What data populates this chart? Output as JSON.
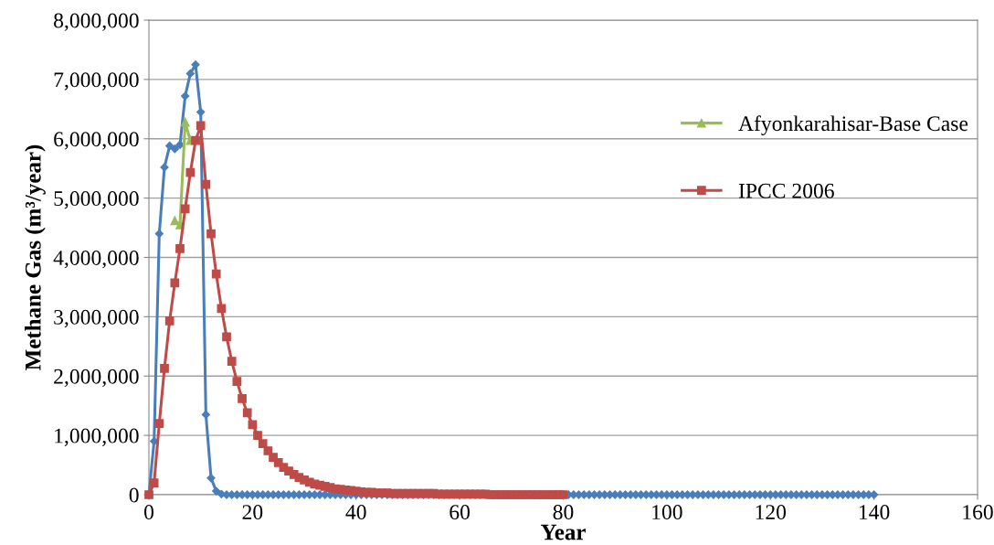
{
  "chart_data": {
    "type": "line",
    "xlabel": "Year",
    "ylabel": "Methane Gas (m³/year)",
    "xlim": [
      0,
      160
    ],
    "xticks": [
      0,
      20,
      40,
      60,
      80,
      100,
      120,
      140,
      160
    ],
    "ylim": [
      0,
      8000000
    ],
    "yticks": [
      {
        "value": 0,
        "label": "0"
      },
      {
        "value": 1000000,
        "label": "1,000,000"
      },
      {
        "value": 2000000,
        "label": "2,000,000"
      },
      {
        "value": 3000000,
        "label": "3,000,000"
      },
      {
        "value": 4000000,
        "label": "4,000,000"
      },
      {
        "value": 5000000,
        "label": "5,000,000"
      },
      {
        "value": 6000000,
        "label": "6,000,000"
      },
      {
        "value": 7000000,
        "label": "7,000,000"
      },
      {
        "value": 8000000,
        "label": "8,000,000"
      }
    ],
    "grid": "y",
    "legend": "right",
    "series": [
      {
        "color": "#4a7ebb",
        "marker": "diamond",
        "x": [
          0,
          1,
          2,
          3,
          4,
          5,
          6,
          7,
          8,
          9,
          10,
          11,
          12,
          13,
          14,
          15,
          16,
          17,
          18,
          19,
          20,
          21,
          22,
          23,
          24,
          25,
          26,
          27,
          28,
          29,
          30,
          31,
          32,
          33,
          34,
          35,
          36,
          37,
          38,
          39,
          40,
          41,
          42,
          43,
          44,
          45,
          46,
          47,
          48,
          49,
          50,
          51,
          52,
          53,
          54,
          55,
          56,
          57,
          58,
          59,
          60,
          61,
          62,
          63,
          64,
          65,
          66,
          67,
          68,
          69,
          70,
          71,
          72,
          73,
          74,
          75,
          76,
          77,
          78,
          79,
          80,
          81,
          82,
          83,
          84,
          85,
          86,
          87,
          88,
          89,
          90,
          91,
          92,
          93,
          94,
          95,
          96,
          97,
          98,
          99,
          100,
          101,
          102,
          103,
          104,
          105,
          106,
          107,
          108,
          109,
          110,
          111,
          112,
          113,
          114,
          115,
          116,
          117,
          118,
          119,
          120,
          121,
          122,
          123,
          124,
          125,
          126,
          127,
          128,
          129,
          130,
          131,
          132,
          133,
          134,
          135,
          136,
          137,
          138,
          139,
          140
        ],
        "values": [
          0,
          900000,
          4400000,
          5520000,
          5880000,
          5830000,
          5900000,
          6720000,
          7100000,
          7250000,
          6450000,
          1350000,
          280000,
          60000,
          10000,
          0,
          0,
          0,
          0,
          0,
          0,
          0,
          0,
          0,
          0,
          0,
          0,
          0,
          0,
          0,
          0,
          0,
          0,
          0,
          0,
          0,
          0,
          0,
          0,
          0,
          0,
          0,
          0,
          0,
          0,
          0,
          0,
          0,
          0,
          0,
          0,
          0,
          0,
          0,
          0,
          0,
          0,
          0,
          0,
          0,
          0,
          0,
          0,
          0,
          0,
          0,
          0,
          0,
          0,
          0,
          0,
          0,
          0,
          0,
          0,
          0,
          0,
          0,
          0,
          0,
          0,
          0,
          0,
          0,
          0,
          0,
          0,
          0,
          0,
          0,
          0,
          0,
          0,
          0,
          0,
          0,
          0,
          0,
          0,
          0,
          0,
          0,
          0,
          0,
          0,
          0,
          0,
          0,
          0,
          0,
          0,
          0,
          0,
          0,
          0,
          0,
          0,
          0,
          0,
          0,
          0,
          0,
          0,
          0,
          0,
          0,
          0,
          0,
          0,
          0,
          0,
          0,
          0,
          0,
          0,
          0,
          0,
          0,
          0,
          0,
          0
        ]
      },
      {
        "name": "Afyonkarahisar-Base Case",
        "color": "#9bbb59",
        "marker": "triangle",
        "x": [
          5,
          6,
          7,
          8
        ],
        "values": [
          4620000,
          4550000,
          6280000,
          5970000
        ]
      },
      {
        "name": "IPCC 2006",
        "color": "#be4b48",
        "marker": "square",
        "x": [
          0,
          1,
          2,
          3,
          4,
          5,
          6,
          7,
          8,
          9,
          10,
          11,
          12,
          13,
          14,
          15,
          16,
          17,
          18,
          19,
          20,
          21,
          22,
          23,
          24,
          25,
          26,
          27,
          28,
          29,
          30,
          31,
          32,
          33,
          34,
          35,
          36,
          37,
          38,
          39,
          40,
          41,
          42,
          43,
          44,
          45,
          46,
          47,
          48,
          49,
          50,
          51,
          52,
          53,
          54,
          55,
          56,
          57,
          58,
          59,
          60,
          61,
          62,
          63,
          64,
          65,
          66,
          67,
          68,
          69,
          70,
          71,
          72,
          73,
          74,
          75,
          76,
          77,
          78,
          79,
          80
        ],
        "values": [
          0,
          200000,
          1200000,
          2130000,
          2930000,
          3570000,
          4150000,
          4820000,
          5430000,
          5970000,
          6220000,
          5230000,
          4400000,
          3720000,
          3140000,
          2660000,
          2250000,
          1910000,
          1620000,
          1380000,
          1180000,
          1000000,
          860000,
          740000,
          630000,
          540000,
          460000,
          400000,
          340000,
          290000,
          250000,
          210000,
          180000,
          160000,
          140000,
          120000,
          100000,
          90000,
          80000,
          70000,
          60000,
          50000,
          40000,
          40000,
          30000,
          30000,
          30000,
          20000,
          20000,
          20000,
          20000,
          20000,
          20000,
          20000,
          20000,
          20000,
          10000,
          10000,
          10000,
          10000,
          10000,
          10000,
          10000,
          10000,
          10000,
          10000,
          0,
          0,
          0,
          0,
          0,
          0,
          0,
          0,
          0,
          0,
          0,
          0,
          0,
          0,
          0
        ]
      }
    ]
  }
}
